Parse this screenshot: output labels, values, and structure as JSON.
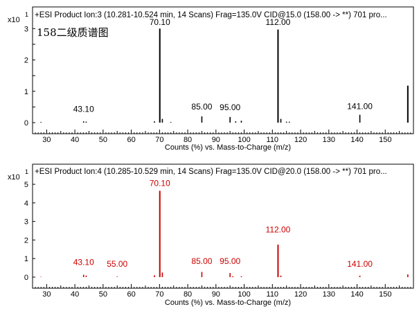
{
  "chart_data": [
    {
      "type": "bar",
      "title": "+ESI Product Ion:3 (10.281-10.524 min, 14 Scans) Frag=135.0V CID@15.0 (158.00 -> **) 701 pro...",
      "annotation": "158二级质谱图",
      "scale_label": "x10",
      "scale_exp": "1",
      "xlabel": "Counts (%) vs. Mass-to-Charge (m/z)",
      "xlim": [
        25,
        160
      ],
      "ylim": [
        0,
        3.25
      ],
      "x_ticks": [
        30,
        40,
        50,
        60,
        70,
        80,
        90,
        100,
        110,
        120,
        130,
        140,
        150
      ],
      "y_ticks": [
        0,
        0.5,
        1,
        1.5,
        2,
        2.5,
        3
      ],
      "y_tick_labels": [
        "0",
        "",
        "1",
        "",
        "2",
        "",
        "3"
      ],
      "color": "#000000",
      "peaks": [
        {
          "x": 28.0,
          "y": 0.02
        },
        {
          "x": 43.1,
          "y": 0.04
        },
        {
          "x": 44.0,
          "y": 0.03
        },
        {
          "x": 68.2,
          "y": 0.04
        },
        {
          "x": 70.1,
          "y": 3.0
        },
        {
          "x": 71.0,
          "y": 0.12
        },
        {
          "x": 74.0,
          "y": 0.02
        },
        {
          "x": 85.0,
          "y": 0.2
        },
        {
          "x": 95.0,
          "y": 0.18
        },
        {
          "x": 97.0,
          "y": 0.04
        },
        {
          "x": 99.0,
          "y": 0.06
        },
        {
          "x": 112.0,
          "y": 2.97
        },
        {
          "x": 113.0,
          "y": 0.12
        },
        {
          "x": 115.0,
          "y": 0.03
        },
        {
          "x": 116.0,
          "y": 0.03
        },
        {
          "x": 141.0,
          "y": 0.25
        },
        {
          "x": 158.0,
          "y": 1.18
        }
      ],
      "peak_labels": [
        {
          "x": 43.1,
          "text": "43.10",
          "y": 0.28
        },
        {
          "x": 70.1,
          "text": "70.10",
          "y": 3.05
        },
        {
          "x": 85.0,
          "text": "85.00",
          "y": 0.35
        },
        {
          "x": 95.0,
          "text": "95.00",
          "y": 0.33
        },
        {
          "x": 112.0,
          "text": "112.00",
          "y": 3.05
        },
        {
          "x": 141.0,
          "text": "141.00",
          "y": 0.37
        }
      ]
    },
    {
      "type": "bar",
      "title": "+ESI Product Ion:4 (10.285-10.529 min, 14 Scans) Frag=135.0V CID@20.0 (158.00 -> **) 701 pro...",
      "scale_label": "x10",
      "scale_exp": "1",
      "xlabel": "Counts (%) vs. Mass-to-Charge (m/z)",
      "xlim": [
        25,
        160
      ],
      "ylim": [
        0,
        5.3
      ],
      "x_ticks": [
        30,
        40,
        50,
        60,
        70,
        80,
        90,
        100,
        110,
        120,
        130,
        140,
        150
      ],
      "y_ticks": [
        0,
        1,
        2,
        3,
        4,
        5
      ],
      "y_tick_labels": [
        "0",
        "1",
        "2",
        "3",
        "4",
        "5"
      ],
      "color": "#cc0000",
      "peaks": [
        {
          "x": 28.0,
          "y": 0.02
        },
        {
          "x": 43.1,
          "y": 0.13
        },
        {
          "x": 44.0,
          "y": 0.08
        },
        {
          "x": 55.0,
          "y": 0.03
        },
        {
          "x": 68.2,
          "y": 0.1
        },
        {
          "x": 70.1,
          "y": 4.65
        },
        {
          "x": 71.0,
          "y": 0.25
        },
        {
          "x": 85.0,
          "y": 0.28
        },
        {
          "x": 95.0,
          "y": 0.22
        },
        {
          "x": 96.0,
          "y": 0.05
        },
        {
          "x": 99.0,
          "y": 0.05
        },
        {
          "x": 112.0,
          "y": 1.75
        },
        {
          "x": 113.0,
          "y": 0.08
        },
        {
          "x": 141.0,
          "y": 0.08
        },
        {
          "x": 158.0,
          "y": 0.15
        }
      ],
      "peak_labels": [
        {
          "x": 43.1,
          "text": "43.10",
          "y": 0.55
        },
        {
          "x": 55.0,
          "text": "55.00",
          "y": 0.45
        },
        {
          "x": 70.1,
          "text": "70.10",
          "y": 4.8
        },
        {
          "x": 85.0,
          "text": "85.00",
          "y": 0.6
        },
        {
          "x": 95.0,
          "text": "95.00",
          "y": 0.6
        },
        {
          "x": 112.0,
          "text": "112.00",
          "y": 2.3
        },
        {
          "x": 141.0,
          "text": "141.00",
          "y": 0.45
        }
      ]
    }
  ]
}
